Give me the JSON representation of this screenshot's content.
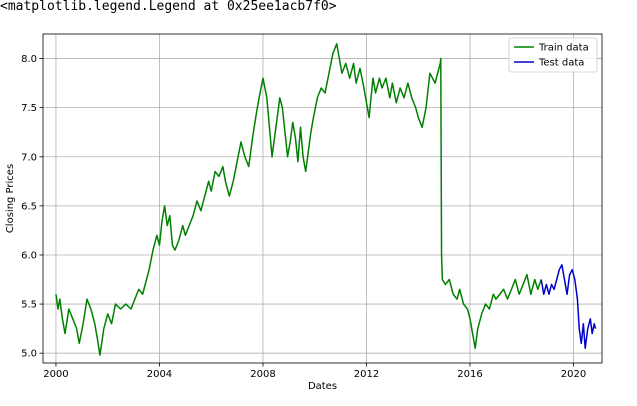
{
  "cell_output": {
    "text": "<matplotlib.legend.Legend at 0x25ee1acb7f0>"
  },
  "chart_data": {
    "type": "line",
    "title": "",
    "xlabel": "Dates",
    "ylabel": "Closing Prices",
    "xlim": [
      1999.5,
      2021.1
    ],
    "ylim": [
      4.9,
      8.25
    ],
    "x_ticks": [
      2000,
      2004,
      2008,
      2012,
      2016,
      2020
    ],
    "x_tick_labels": [
      "2000",
      "2004",
      "2008",
      "2012",
      "2016",
      "2020"
    ],
    "y_ticks": [
      5.0,
      5.5,
      6.0,
      6.5,
      7.0,
      7.5,
      8.0
    ],
    "y_tick_labels": [
      "5.0",
      "5.5",
      "6.0",
      "6.5",
      "7.0",
      "7.5",
      "8.0"
    ],
    "grid": true,
    "legend_position": "top-right",
    "series": [
      {
        "name": "Train data",
        "color": "#008000",
        "points": [
          [
            2000.0,
            5.6
          ],
          [
            2000.08,
            5.45
          ],
          [
            2000.15,
            5.55
          ],
          [
            2000.25,
            5.35
          ],
          [
            2000.35,
            5.2
          ],
          [
            2000.5,
            5.45
          ],
          [
            2000.65,
            5.35
          ],
          [
            2000.8,
            5.25
          ],
          [
            2000.9,
            5.1
          ],
          [
            2001.05,
            5.3
          ],
          [
            2001.2,
            5.55
          ],
          [
            2001.35,
            5.45
          ],
          [
            2001.5,
            5.3
          ],
          [
            2001.6,
            5.15
          ],
          [
            2001.7,
            4.98
          ],
          [
            2001.85,
            5.25
          ],
          [
            2002.0,
            5.4
          ],
          [
            2002.15,
            5.3
          ],
          [
            2002.3,
            5.5
          ],
          [
            2002.5,
            5.45
          ],
          [
            2002.7,
            5.5
          ],
          [
            2002.9,
            5.45
          ],
          [
            2003.05,
            5.55
          ],
          [
            2003.2,
            5.65
          ],
          [
            2003.35,
            5.6
          ],
          [
            2003.5,
            5.75
          ],
          [
            2003.6,
            5.85
          ],
          [
            2003.75,
            6.05
          ],
          [
            2003.9,
            6.2
          ],
          [
            2004.0,
            6.1
          ],
          [
            2004.1,
            6.35
          ],
          [
            2004.2,
            6.5
          ],
          [
            2004.3,
            6.3
          ],
          [
            2004.4,
            6.4
          ],
          [
            2004.5,
            6.1
          ],
          [
            2004.6,
            6.05
          ],
          [
            2004.75,
            6.15
          ],
          [
            2004.9,
            6.3
          ],
          [
            2005.0,
            6.2
          ],
          [
            2005.15,
            6.3
          ],
          [
            2005.3,
            6.4
          ],
          [
            2005.45,
            6.55
          ],
          [
            2005.6,
            6.45
          ],
          [
            2005.75,
            6.6
          ],
          [
            2005.9,
            6.75
          ],
          [
            2006.0,
            6.65
          ],
          [
            2006.15,
            6.85
          ],
          [
            2006.3,
            6.8
          ],
          [
            2006.45,
            6.9
          ],
          [
            2006.55,
            6.75
          ],
          [
            2006.7,
            6.6
          ],
          [
            2006.85,
            6.75
          ],
          [
            2007.0,
            6.95
          ],
          [
            2007.15,
            7.15
          ],
          [
            2007.3,
            7.0
          ],
          [
            2007.45,
            6.9
          ],
          [
            2007.6,
            7.2
          ],
          [
            2007.75,
            7.45
          ],
          [
            2007.85,
            7.6
          ],
          [
            2008.0,
            7.8
          ],
          [
            2008.15,
            7.6
          ],
          [
            2008.25,
            7.3
          ],
          [
            2008.35,
            7.0
          ],
          [
            2008.45,
            7.2
          ],
          [
            2008.55,
            7.4
          ],
          [
            2008.65,
            7.6
          ],
          [
            2008.75,
            7.5
          ],
          [
            2008.85,
            7.25
          ],
          [
            2008.95,
            7.0
          ],
          [
            2009.05,
            7.15
          ],
          [
            2009.15,
            7.35
          ],
          [
            2009.25,
            7.2
          ],
          [
            2009.35,
            6.95
          ],
          [
            2009.45,
            7.3
          ],
          [
            2009.55,
            7.0
          ],
          [
            2009.65,
            6.85
          ],
          [
            2009.75,
            7.05
          ],
          [
            2009.85,
            7.25
          ],
          [
            2009.95,
            7.4
          ],
          [
            2010.1,
            7.6
          ],
          [
            2010.25,
            7.7
          ],
          [
            2010.4,
            7.65
          ],
          [
            2010.55,
            7.85
          ],
          [
            2010.7,
            8.05
          ],
          [
            2010.85,
            8.15
          ],
          [
            2010.95,
            8.0
          ],
          [
            2011.05,
            7.85
          ],
          [
            2011.2,
            7.95
          ],
          [
            2011.35,
            7.8
          ],
          [
            2011.5,
            7.95
          ],
          [
            2011.6,
            7.75
          ],
          [
            2011.75,
            7.9
          ],
          [
            2011.9,
            7.7
          ],
          [
            2012.0,
            7.55
          ],
          [
            2012.1,
            7.4
          ],
          [
            2012.25,
            7.8
          ],
          [
            2012.35,
            7.65
          ],
          [
            2012.5,
            7.8
          ],
          [
            2012.6,
            7.7
          ],
          [
            2012.75,
            7.8
          ],
          [
            2012.9,
            7.6
          ],
          [
            2013.0,
            7.75
          ],
          [
            2013.15,
            7.55
          ],
          [
            2013.3,
            7.7
          ],
          [
            2013.45,
            7.6
          ],
          [
            2013.6,
            7.75
          ],
          [
            2013.75,
            7.6
          ],
          [
            2013.9,
            7.5
          ],
          [
            2014.0,
            7.4
          ],
          [
            2014.15,
            7.3
          ],
          [
            2014.3,
            7.5
          ],
          [
            2014.45,
            7.85
          ],
          [
            2014.55,
            7.8
          ],
          [
            2014.65,
            7.75
          ],
          [
            2014.75,
            7.85
          ],
          [
            2014.85,
            7.95
          ],
          [
            2014.87,
            8.0
          ],
          [
            2014.9,
            6.0
          ],
          [
            2014.93,
            5.75
          ],
          [
            2015.05,
            5.7
          ],
          [
            2015.2,
            5.75
          ],
          [
            2015.35,
            5.6
          ],
          [
            2015.5,
            5.55
          ],
          [
            2015.6,
            5.65
          ],
          [
            2015.75,
            5.5
          ],
          [
            2015.9,
            5.45
          ],
          [
            2016.0,
            5.35
          ],
          [
            2016.1,
            5.2
          ],
          [
            2016.2,
            5.05
          ],
          [
            2016.3,
            5.25
          ],
          [
            2016.45,
            5.4
          ],
          [
            2016.6,
            5.5
          ],
          [
            2016.75,
            5.45
          ],
          [
            2016.9,
            5.6
          ],
          [
            2017.0,
            5.55
          ],
          [
            2017.15,
            5.6
          ],
          [
            2017.3,
            5.65
          ],
          [
            2017.45,
            5.55
          ],
          [
            2017.6,
            5.65
          ],
          [
            2017.75,
            5.75
          ],
          [
            2017.9,
            5.6
          ],
          [
            2018.05,
            5.7
          ],
          [
            2018.2,
            5.8
          ],
          [
            2018.35,
            5.6
          ],
          [
            2018.5,
            5.75
          ],
          [
            2018.62,
            5.65
          ],
          [
            2018.75,
            5.75
          ]
        ]
      },
      {
        "name": "Test data",
        "color": "#0000cc",
        "points": [
          [
            2018.75,
            5.75
          ],
          [
            2018.85,
            5.6
          ],
          [
            2018.95,
            5.7
          ],
          [
            2019.05,
            5.6
          ],
          [
            2019.15,
            5.7
          ],
          [
            2019.25,
            5.65
          ],
          [
            2019.35,
            5.75
          ],
          [
            2019.45,
            5.85
          ],
          [
            2019.55,
            5.9
          ],
          [
            2019.65,
            5.75
          ],
          [
            2019.75,
            5.6
          ],
          [
            2019.85,
            5.8
          ],
          [
            2019.95,
            5.85
          ],
          [
            2020.05,
            5.75
          ],
          [
            2020.15,
            5.55
          ],
          [
            2020.22,
            5.25
          ],
          [
            2020.3,
            5.1
          ],
          [
            2020.38,
            5.3
          ],
          [
            2020.45,
            5.05
          ],
          [
            2020.55,
            5.25
          ],
          [
            2020.65,
            5.35
          ],
          [
            2020.72,
            5.2
          ],
          [
            2020.8,
            5.3
          ],
          [
            2020.85,
            5.25
          ]
        ]
      }
    ]
  }
}
